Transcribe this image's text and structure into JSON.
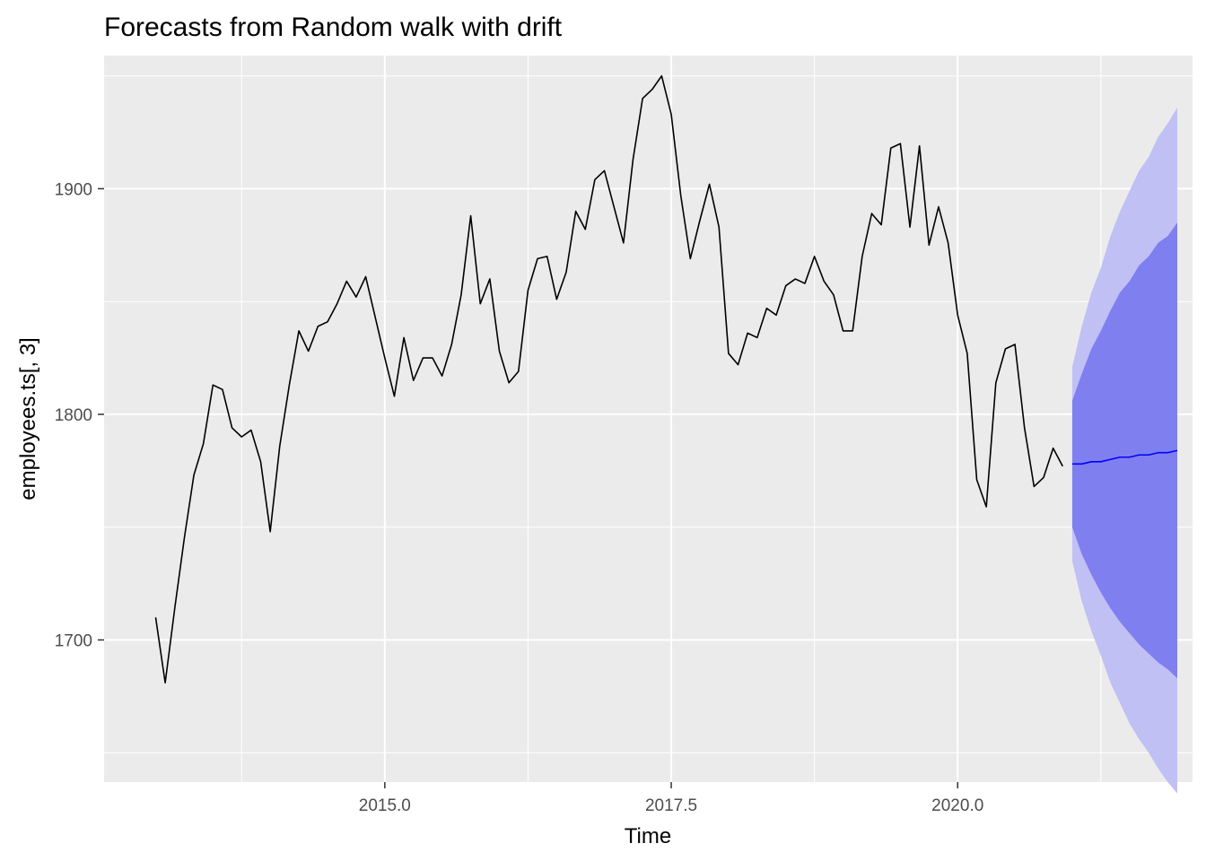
{
  "chart_data": {
    "type": "line",
    "title": "Forecasts from Random walk with drift",
    "xlabel": "Time",
    "ylabel": "employees.ts[, 3]",
    "xlim": [
      2012.55,
      2022.05
    ],
    "ylim": [
      1637,
      1959
    ],
    "x_ticks": [
      2015.0,
      2017.5,
      2020.0
    ],
    "x_tick_labels": [
      "2015.0",
      "2017.5",
      "2020.0"
    ],
    "x_minor": [
      2013.75,
      2016.25,
      2018.75,
      2021.25
    ],
    "y_ticks": [
      1700,
      1800,
      1900
    ],
    "y_tick_labels": [
      "1700",
      "1800",
      "1900"
    ],
    "y_minor": [
      1650,
      1750,
      1850,
      1950
    ],
    "grid": true,
    "legend": "none",
    "colors": {
      "panel": "#ebebeb",
      "grid": "#ffffff",
      "history": "#000000",
      "forecast": "#0000ff",
      "pi80": "#7f7fef",
      "pi95": "#c0c0f5"
    },
    "series": [
      {
        "start": 2013.0,
        "frequency": 12,
        "values": [
          1710,
          1681,
          1714,
          1745,
          1773,
          1787,
          1813,
          1811,
          1794,
          1790,
          1793,
          1779,
          1748,
          1786,
          1813,
          1837,
          1828,
          1839,
          1841,
          1849,
          1859,
          1852,
          1861,
          1843,
          1825,
          1808,
          1834,
          1815,
          1825,
          1825,
          1817,
          1831,
          1853,
          1888,
          1849,
          1860,
          1828,
          1814,
          1819,
          1855,
          1869,
          1870,
          1851,
          1863,
          1890,
          1882,
          1904,
          1908,
          1892,
          1876,
          1913,
          1940,
          1944,
          1950,
          1933,
          1897,
          1869,
          1886,
          1902,
          1883,
          1827,
          1822,
          1836,
          1834,
          1847,
          1844,
          1857,
          1860,
          1858,
          1870,
          1859,
          1853,
          1837,
          1837,
          1870,
          1889,
          1884,
          1918,
          1920,
          1883,
          1919,
          1875,
          1892,
          1876,
          1844,
          1827,
          1771,
          1759,
          1814,
          1829,
          1831,
          1794,
          1768,
          1772,
          1785,
          1777
        ]
      },
      {
        "start": 2021.0,
        "frequency": 12,
        "values": [
          1778,
          1778,
          1779,
          1779,
          1780,
          1781,
          1781,
          1782,
          1782,
          1783,
          1783,
          1784
        ],
        "lo80": [
          1750,
          1738,
          1729,
          1721,
          1714,
          1708,
          1703,
          1698,
          1694,
          1690,
          1687,
          1683
        ],
        "hi80": [
          1806,
          1818,
          1829,
          1837,
          1846,
          1854,
          1859,
          1866,
          1870,
          1876,
          1879,
          1885
        ],
        "lo95": [
          1735,
          1717,
          1704,
          1693,
          1681,
          1672,
          1663,
          1656,
          1650,
          1643,
          1637,
          1632
        ],
        "hi95": [
          1821,
          1839,
          1854,
          1865,
          1879,
          1890,
          1899,
          1908,
          1914,
          1923,
          1929,
          1936
        ]
      }
    ]
  }
}
